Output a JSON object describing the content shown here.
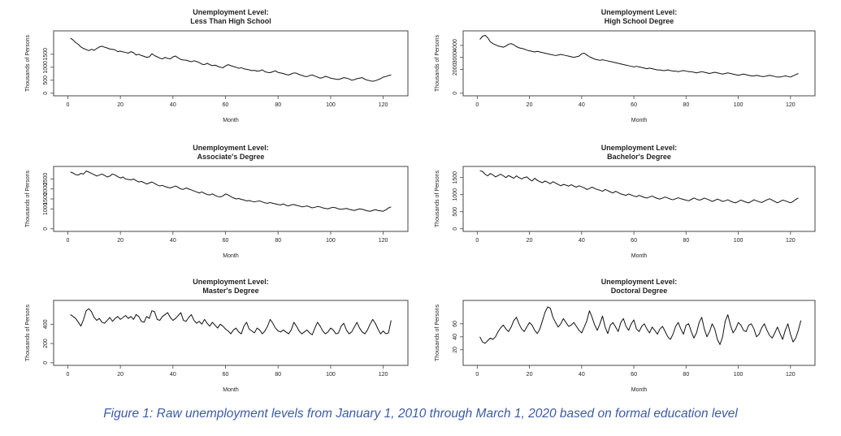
{
  "caption": "Figure 1: Raw unemployment levels from January 1, 2010 through March 1, 2020 based on formal education level",
  "chart_data": [
    {
      "type": "line",
      "title": [
        "Unemployment Level:",
        "Less Than High School"
      ],
      "xlabel": "Month",
      "ylabel": "Thousands of Persons",
      "xlim": [
        0,
        124
      ],
      "ylim": [
        0,
        2300
      ],
      "xticks": [
        0,
        20,
        40,
        60,
        80,
        100,
        120
      ],
      "yticks": [
        0,
        500,
        1000,
        1500
      ],
      "grid": false,
      "x_start": 1,
      "values": [
        2120,
        2050,
        1950,
        1880,
        1780,
        1720,
        1680,
        1640,
        1690,
        1650,
        1720,
        1780,
        1810,
        1770,
        1740,
        1700,
        1690,
        1670,
        1600,
        1620,
        1590,
        1570,
        1540,
        1600,
        1560,
        1470,
        1500,
        1450,
        1420,
        1380,
        1400,
        1520,
        1450,
        1400,
        1350,
        1320,
        1380,
        1340,
        1320,
        1400,
        1430,
        1360,
        1300,
        1280,
        1270,
        1240,
        1210,
        1250,
        1220,
        1180,
        1120,
        1100,
        1150,
        1100,
        1060,
        1080,
        1040,
        1000,
        980,
        1050,
        1100,
        1060,
        1030,
        1000,
        960,
        980,
        940,
        920,
        900,
        870,
        880,
        850,
        860,
        900,
        830,
        800,
        790,
        830,
        860,
        800,
        780,
        760,
        720,
        700,
        740,
        780,
        770,
        720,
        690,
        650,
        640,
        680,
        700,
        660,
        620,
        580,
        600,
        650,
        620,
        580,
        560,
        540,
        530,
        560,
        600,
        580,
        550,
        500,
        520,
        560,
        580,
        600,
        540,
        500,
        480,
        460,
        480,
        520,
        560,
        620,
        640,
        680,
        700
      ]
    },
    {
      "type": "line",
      "title": [
        "Unemployment Level:",
        "High School Degree"
      ],
      "xlabel": "Month",
      "ylabel": "Thousands of Persons",
      "xlim": [
        0,
        124
      ],
      "ylim": [
        0,
        5000
      ],
      "xticks": [
        0,
        20,
        40,
        60,
        80,
        100,
        120
      ],
      "yticks": [
        0,
        2000,
        3000,
        4000
      ],
      "grid": false,
      "x_start": 1,
      "values": [
        4500,
        4750,
        4850,
        4650,
        4300,
        4150,
        4050,
        3950,
        3900,
        3850,
        3950,
        4100,
        4150,
        4050,
        3900,
        3800,
        3750,
        3700,
        3600,
        3550,
        3500,
        3450,
        3500,
        3450,
        3400,
        3350,
        3300,
        3250,
        3200,
        3150,
        3200,
        3250,
        3200,
        3150,
        3100,
        3050,
        3000,
        3050,
        3100,
        3300,
        3350,
        3200,
        3050,
        2950,
        2850,
        2800,
        2750,
        2800,
        2750,
        2700,
        2650,
        2600,
        2550,
        2500,
        2450,
        2400,
        2350,
        2300,
        2250,
        2200,
        2250,
        2200,
        2150,
        2100,
        2050,
        2100,
        2050,
        2000,
        1950,
        1950,
        1900,
        1900,
        1950,
        1900,
        1850,
        1850,
        1800,
        1850,
        1900,
        1850,
        1800,
        1800,
        1750,
        1700,
        1750,
        1800,
        1750,
        1700,
        1650,
        1700,
        1750,
        1700,
        1650,
        1600,
        1650,
        1700,
        1650,
        1600,
        1550,
        1500,
        1550,
        1600,
        1550,
        1500,
        1450,
        1450,
        1500,
        1450,
        1400,
        1400,
        1450,
        1500,
        1450,
        1400,
        1350,
        1350,
        1400,
        1450,
        1400,
        1350,
        1450,
        1550,
        1650
      ]
    },
    {
      "type": "line",
      "title": [
        "Unemployment Level:",
        "Associate's Degree"
      ],
      "xlabel": "Month",
      "ylabel": "Thousands of Persons",
      "xlim": [
        0,
        124
      ],
      "ylim": [
        0,
        3000
      ],
      "xticks": [
        0,
        20,
        40,
        60,
        80,
        100,
        120
      ],
      "yticks": [
        0,
        1000,
        1500,
        2000,
        2500
      ],
      "grid": false,
      "x_start": 1,
      "values": [
        2850,
        2800,
        2720,
        2700,
        2780,
        2750,
        2900,
        2850,
        2780,
        2720,
        2650,
        2700,
        2750,
        2680,
        2600,
        2650,
        2750,
        2700,
        2620,
        2550,
        2600,
        2500,
        2480,
        2450,
        2500,
        2420,
        2350,
        2380,
        2320,
        2250,
        2300,
        2350,
        2280,
        2200,
        2150,
        2180,
        2120,
        2080,
        2050,
        2100,
        2150,
        2080,
        2000,
        1980,
        2050,
        2000,
        1950,
        1900,
        1850,
        1800,
        1850,
        1780,
        1720,
        1700,
        1750,
        1680,
        1620,
        1600,
        1650,
        1750,
        1700,
        1620,
        1550,
        1500,
        1520,
        1480,
        1450,
        1400,
        1420,
        1380,
        1350,
        1380,
        1400,
        1350,
        1300,
        1280,
        1320,
        1280,
        1250,
        1220,
        1200,
        1250,
        1180,
        1150,
        1200,
        1220,
        1180,
        1150,
        1100,
        1120,
        1150,
        1100,
        1050,
        1080,
        1120,
        1100,
        1050,
        1020,
        1000,
        1050,
        1080,
        1050,
        1000,
        980,
        1000,
        1020,
        980,
        950,
        920,
        960,
        1000,
        980,
        940,
        900,
        880,
        920,
        960,
        920,
        900,
        880,
        950,
        1050,
        1100
      ]
    },
    {
      "type": "line",
      "title": [
        "Unemployment Level:",
        "Bachelor's Degree"
      ],
      "xlabel": "Month",
      "ylabel": "Thousands of Persons",
      "xlim": [
        0,
        124
      ],
      "ylim": [
        0,
        1750
      ],
      "xticks": [
        0,
        20,
        40,
        60,
        80,
        100,
        120
      ],
      "yticks": [
        0,
        500,
        1000,
        1500
      ],
      "grid": false,
      "x_start": 1,
      "values": [
        1700,
        1680,
        1600,
        1550,
        1620,
        1580,
        1520,
        1560,
        1600,
        1550,
        1500,
        1560,
        1520,
        1480,
        1550,
        1500,
        1460,
        1500,
        1520,
        1450,
        1400,
        1480,
        1420,
        1380,
        1350,
        1400,
        1360,
        1320,
        1380,
        1340,
        1300,
        1260,
        1300,
        1280,
        1250,
        1290,
        1250,
        1220,
        1260,
        1230,
        1200,
        1150,
        1180,
        1220,
        1180,
        1150,
        1130,
        1100,
        1150,
        1120,
        1080,
        1050,
        1100,
        1060,
        1020,
        1000,
        980,
        1020,
        990,
        960,
        940,
        980,
        950,
        920,
        900,
        930,
        960,
        920,
        890,
        870,
        900,
        930,
        900,
        870,
        850,
        880,
        910,
        880,
        860,
        840,
        820,
        860,
        900,
        870,
        840,
        860,
        900,
        870,
        840,
        800,
        830,
        870,
        840,
        800,
        820,
        850,
        810,
        780,
        760,
        800,
        840,
        810,
        780,
        760,
        800,
        850,
        820,
        790,
        770,
        810,
        850,
        880,
        840,
        800,
        760,
        800,
        840,
        820,
        790,
        760,
        800,
        860,
        900
      ]
    },
    {
      "type": "line",
      "title": [
        "Unemployment Level:",
        "Master's Degree"
      ],
      "xlabel": "Month",
      "ylabel": "Thousands of Persons",
      "xlim": [
        0,
        124
      ],
      "ylim": [
        0,
        620
      ],
      "xticks": [
        0,
        20,
        40,
        60,
        80,
        100,
        120
      ],
      "yticks": [
        0,
        200,
        400
      ],
      "grid": false,
      "x_start": 1,
      "values": [
        500,
        480,
        460,
        420,
        380,
        450,
        540,
        560,
        530,
        470,
        440,
        460,
        420,
        410,
        440,
        470,
        430,
        460,
        480,
        450,
        470,
        490,
        460,
        480,
        450,
        500,
        480,
        430,
        420,
        480,
        460,
        540,
        530,
        450,
        440,
        480,
        500,
        520,
        470,
        440,
        460,
        490,
        520,
        440,
        430,
        470,
        500,
        440,
        410,
        430,
        400,
        450,
        410,
        380,
        420,
        390,
        360,
        400,
        380,
        350,
        330,
        300,
        340,
        360,
        320,
        300,
        380,
        420,
        350,
        330,
        310,
        360,
        340,
        300,
        330,
        380,
        450,
        410,
        360,
        330,
        320,
        340,
        320,
        300,
        340,
        420,
        380,
        330,
        300,
        320,
        340,
        310,
        290,
        360,
        420,
        380,
        330,
        300,
        320,
        360,
        340,
        300,
        310,
        380,
        410,
        340,
        300,
        320,
        370,
        420,
        360,
        320,
        300,
        340,
        400,
        450,
        410,
        350,
        300,
        330,
        300,
        310,
        440
      ]
    },
    {
      "type": "line",
      "title": [
        "Unemployment Level:",
        "Doctoral Degree"
      ],
      "xlabel": "Month",
      "ylabel": "Thousands of Persons",
      "xlim": [
        0,
        124
      ],
      "ylim": [
        0,
        92
      ],
      "xticks": [
        0,
        20,
        40,
        60,
        80,
        100,
        120
      ],
      "yticks": [
        20,
        40,
        60
      ],
      "grid": false,
      "x_start": 1,
      "values": [
        40,
        32,
        30,
        34,
        38,
        36,
        40,
        48,
        54,
        58,
        52,
        48,
        55,
        65,
        70,
        60,
        52,
        48,
        55,
        62,
        58,
        50,
        45,
        52,
        65,
        78,
        86,
        84,
        70,
        62,
        55,
        60,
        68,
        62,
        56,
        58,
        62,
        56,
        50,
        46,
        55,
        65,
        80,
        70,
        58,
        50,
        60,
        72,
        55,
        45,
        58,
        62,
        55,
        48,
        62,
        68,
        56,
        50,
        60,
        66,
        52,
        48,
        56,
        60,
        52,
        46,
        55,
        50,
        44,
        52,
        56,
        48,
        40,
        36,
        44,
        56,
        62,
        52,
        44,
        58,
        60,
        48,
        38,
        46,
        62,
        70,
        52,
        40,
        48,
        60,
        52,
        36,
        28,
        40,
        64,
        74,
        58,
        46,
        52,
        62,
        58,
        50,
        48,
        58,
        60,
        52,
        40,
        44,
        54,
        60,
        50,
        42,
        38,
        46,
        55,
        45,
        36,
        50,
        60,
        44,
        32,
        38,
        50,
        65
      ]
    }
  ]
}
